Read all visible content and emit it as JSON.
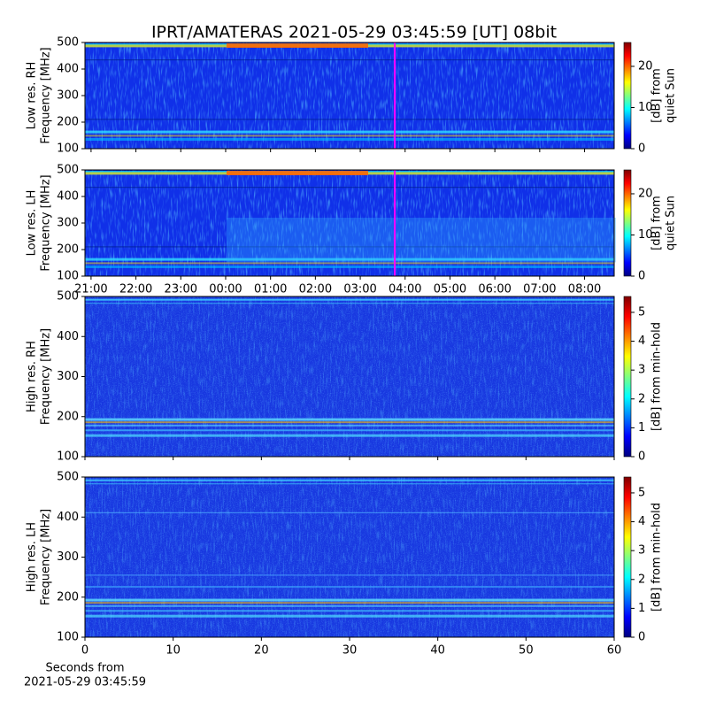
{
  "chart_data": [
    {
      "type": "heatmap",
      "title": "IPRT/AMATERAS 2021-05-29 03:45:59 [UT]   08bit",
      "ylabel": [
        "Low res. RH",
        "Frequency [MHz]"
      ],
      "ylim": [
        100,
        500
      ],
      "yticks": [
        100,
        200,
        300,
        400,
        500
      ],
      "xlim": [
        20.864,
        32.66
      ],
      "xticks": [
        21,
        22,
        23,
        24,
        25,
        26,
        27,
        28,
        29,
        30,
        31,
        32
      ],
      "xtick_labels": false,
      "marker_x": 27.77,
      "marker_color": "#ff00ff",
      "colormap": "jet",
      "clim": [
        0,
        25.8
      ],
      "cticks": [
        0,
        10,
        20
      ],
      "clabel": [
        "[dB] from",
        "quiet Sun"
      ]
    },
    {
      "type": "heatmap",
      "ylabel": [
        "Low res. LH",
        "Frequency [MHz]"
      ],
      "ylim": [
        100,
        500
      ],
      "yticks": [
        100,
        200,
        300,
        400,
        500
      ],
      "xlim": [
        20.864,
        32.66
      ],
      "xticks": [
        {
          "value": 21,
          "label": "21:00"
        },
        {
          "value": 22,
          "label": "22:00"
        },
        {
          "value": 23,
          "label": "23:00"
        },
        {
          "value": 24,
          "label": "00:00"
        },
        {
          "value": 25,
          "label": "01:00"
        },
        {
          "value": 26,
          "label": "02:00"
        },
        {
          "value": 27,
          "label": "03:00"
        },
        {
          "value": 28,
          "label": "04:00"
        },
        {
          "value": 29,
          "label": "05:00"
        },
        {
          "value": 30,
          "label": "06:00"
        },
        {
          "value": 31,
          "label": "07:00"
        },
        {
          "value": 32,
          "label": "08:00"
        }
      ],
      "xtick_labels": true,
      "marker_x": 27.77,
      "marker_color": "#ff00ff",
      "colormap": "jet",
      "clim": [
        0,
        25.8
      ],
      "cticks": [
        0,
        10,
        20
      ],
      "clabel": [
        "[dB] from",
        "quiet Sun"
      ]
    },
    {
      "type": "heatmap",
      "ylabel": [
        "High res. RH",
        "Frequency [MHz]"
      ],
      "ylim": [
        100,
        500
      ],
      "yticks": [
        100,
        200,
        300,
        400,
        500
      ],
      "xlim": [
        0,
        60
      ],
      "xticks": [
        0,
        10,
        20,
        30,
        40,
        50,
        60
      ],
      "xtick_labels": false,
      "colormap": "jet",
      "clim": [
        0,
        5.55
      ],
      "cticks": [
        0,
        1,
        2,
        3,
        4,
        5
      ],
      "clabel": [
        "[dB] from min-hold"
      ]
    },
    {
      "type": "heatmap",
      "ylabel": [
        "High res. LH",
        "Frequency [MHz]"
      ],
      "ylim": [
        100,
        500
      ],
      "yticks": [
        100,
        200,
        300,
        400,
        500
      ],
      "xlim": [
        0,
        60
      ],
      "xticks": [
        0,
        10,
        20,
        30,
        40,
        50,
        60
      ],
      "xtick_labels": true,
      "xlabel": [
        "Seconds from",
        "2021-05-29 03:45:59"
      ],
      "colormap": "jet",
      "clim": [
        0,
        5.55
      ],
      "cticks": [
        0,
        1,
        2,
        3,
        4,
        5
      ],
      "clabel": [
        "[dB] from min-hold"
      ]
    }
  ]
}
